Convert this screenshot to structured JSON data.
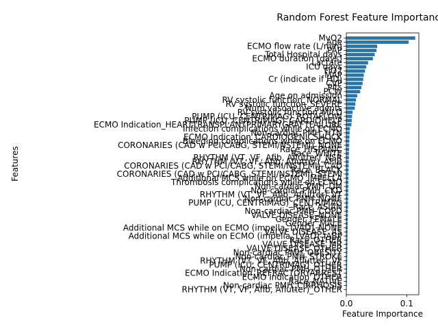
{
  "chart_data": {
    "type": "bar",
    "orientation": "horizontal",
    "title": "Random Forest Feature Importance",
    "xlabel": "Feature Importance",
    "ylabel": "Features",
    "xlim": [
      0,
      0.12
    ],
    "xticks": [
      0.0,
      0.1
    ],
    "xtick_labels": [
      "0.0",
      "0.1"
    ],
    "grid": false,
    "legend": "none",
    "bar_color": "#1f77b4",
    "categories": [
      "MvO2",
      "Age",
      "ECMO flow rate (L/min)",
      "PAP",
      "Total Hospital days",
      "ECMO duration (days)",
      "Lactate",
      "ICU days",
      "FiO2",
      "MAP",
      "Cr (indicate if HD)",
      "CVP",
      "Plts",
      "PCW",
      "Age on admission",
      "RV systolic function_NORMAL",
      "RV systolic function_SEVERE",
      "Num vasoactive agents",
      "RV systolic function_MILD",
      "PUMP (ICU, CENTRIMAG)_ROTAFLOW",
      "PUMP (ICU, CENTRIMAG)_CARDIOHELP",
      "ECMO Indication_HEARTTRANSPLANTPRIMARYGRAFTFAILURE",
      "Infection complications while on ECMO",
      "Non-cardiac PMH_HTN",
      "ECMO Indication_CARDIOGENICSHOCK",
      "Bleeding complications while on ECMO",
      "CORONARIES (CAD w PCI/CABG, STEMI/NSTEMI)_NONE",
      "Race_HISPANIC",
      "Race_WHITE",
      "RHYTHM (VT, VF, Afib, Aflutter)_NSR",
      "RHYTHM (VT, VF, Afib, Aflutter)_AFIB",
      "CORONARIES (CAD w PCI/CABG, STEMI/NSTEMI)_CAD",
      "Race_BLACK",
      "CORONARIES (CAD w PCI/CABG, STEMI/NSTEMI)_STEMI",
      "Additional MCS while on ECMO_IMPELLA",
      "Thrombosis complications while on ECMO",
      "Non-cardiac PMH_DM",
      "Non-cardiac PMH_CKD",
      "RHYTHM (VT, VF, Afib, Aflutter)_VT",
      "Non-cardiac PMH_NONE",
      "PUMP (ICU, CENTRIMAG)_CENTRIMAG",
      "Race_ASIAN",
      "Non-cardiac PMH_COPD",
      "VALVE DISEASE_NONE",
      "Gender_FEMALE",
      "Gender_MALE",
      "Additional MCS while on ECMO (impella, LVAD)_NONE",
      "VALVE DISEASE_AS",
      "Additional MCS while on ECMO (impella, LVAD)_IABP",
      "Race_OTHER",
      "VALVE DISEASE_MR",
      "VALVE DISEASE_OTHER",
      "Non-cardiac PMH_OBESITY",
      "Non-cardiac PMH_STROKE",
      "RHYTHM (VT, VF, Afib, Aflutter)_VF",
      "PUMP (ICU, CENTRIMAG)_OTHER",
      "Non-cardiac PMH_OTHER",
      "ECMO Indication_REFRACTORYARREST",
      "ECMO Indication_OTHER",
      "Race_NATIVE",
      "Non-cardiac PMH_CIRRHOSIS",
      "RHYTHM (VT, VF, Afib, Aflutter)_OTHER"
    ],
    "values": [
      0.114,
      0.103,
      0.051,
      0.05,
      0.047,
      0.044,
      0.036,
      0.033,
      0.031,
      0.029,
      0.028,
      0.027,
      0.025,
      0.023,
      0.018,
      0.016,
      0.015,
      0.014,
      0.0105,
      0.0095,
      0.009,
      0.0085,
      0.006,
      0.0055,
      0.0052,
      0.005,
      0.0048,
      0.0046,
      0.0044,
      0.0042,
      0.004,
      0.0038,
      0.0037,
      0.0036,
      0.0035,
      0.0034,
      0.0033,
      0.0032,
      0.0031,
      0.003,
      0.0029,
      0.0028,
      0.0027,
      0.0026,
      0.0025,
      0.0024,
      0.0023,
      0.0022,
      0.0021,
      0.002,
      0.0019,
      0.0018,
      0.0017,
      0.0016,
      0.0015,
      0.0014,
      0.0013,
      0.0012,
      0.0011,
      0.001,
      0.0008,
      0.0005
    ]
  }
}
